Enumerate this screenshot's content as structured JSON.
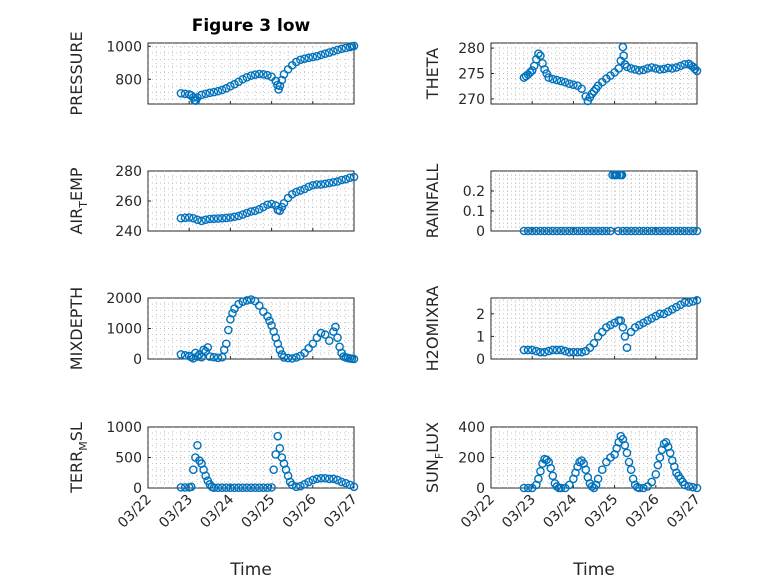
{
  "figure": {
    "title": "Figure 3 low",
    "marker_color": "#0072BD",
    "x_ticks": [
      "03/22",
      "03/23",
      "03/24",
      "03/25",
      "03/26",
      "03/27"
    ],
    "x_label": "Time"
  },
  "chart_data": [
    {
      "type": "scatter",
      "ylabel": "PRESSURE",
      "title": "Figure 3 low",
      "xlim": [
        0,
        5
      ],
      "ylim": [
        650,
        1020
      ],
      "yticks": [
        800,
        1000
      ],
      "grid": true,
      "series": [
        {
          "x": [
            0.8,
            0.9,
            1.0,
            1.05,
            1.1,
            1.13,
            1.16,
            1.2,
            1.3,
            1.4,
            1.5,
            1.6,
            1.7,
            1.8,
            1.9,
            2.0,
            2.1,
            2.2,
            2.3,
            2.4,
            2.5,
            2.6,
            2.7,
            2.8,
            2.9,
            3.0,
            3.1,
            3.14,
            3.17,
            3.2,
            3.25,
            3.3,
            3.4,
            3.5,
            3.6,
            3.7,
            3.8,
            3.9,
            4.0,
            4.1,
            4.2,
            4.3,
            4.4,
            4.5,
            4.6,
            4.7,
            4.8,
            4.9,
            4.95,
            5.0
          ],
          "y": [
            715,
            712,
            708,
            702,
            690,
            672,
            670,
            690,
            705,
            712,
            718,
            722,
            728,
            735,
            745,
            758,
            770,
            785,
            800,
            812,
            822,
            828,
            832,
            830,
            825,
            815,
            790,
            765,
            738,
            760,
            795,
            830,
            860,
            885,
            905,
            918,
            925,
            930,
            935,
            940,
            948,
            955,
            962,
            970,
            978,
            985,
            990,
            995,
            1000,
            1002
          ]
        }
      ]
    },
    {
      "type": "scatter",
      "ylabel": "THETA",
      "xlim": [
        0,
        5
      ],
      "ylim": [
        269,
        281
      ],
      "yticks": [
        270,
        275,
        280
      ],
      "grid": true,
      "series": [
        {
          "x": [
            0.8,
            0.85,
            0.9,
            0.95,
            1.0,
            1.05,
            1.1,
            1.15,
            1.2,
            1.25,
            1.3,
            1.35,
            1.4,
            1.5,
            1.6,
            1.7,
            1.8,
            1.9,
            2.0,
            2.1,
            2.2,
            2.3,
            2.35,
            2.4,
            2.45,
            2.5,
            2.55,
            2.6,
            2.7,
            2.8,
            2.9,
            3.0,
            3.1,
            3.15,
            3.2,
            3.22,
            3.25,
            3.3,
            3.4,
            3.5,
            3.6,
            3.7,
            3.8,
            3.9,
            4.0,
            4.1,
            4.2,
            4.3,
            4.4,
            4.5,
            4.6,
            4.7,
            4.8,
            4.85,
            4.9,
            4.95,
            5.0
          ],
          "y": [
            274.2,
            274.5,
            274.8,
            275.2,
            275.6,
            276.5,
            277.8,
            278.9,
            278.5,
            277.0,
            275.8,
            275.0,
            274.2,
            273.9,
            273.7,
            273.5,
            273.3,
            273.0,
            272.8,
            272.6,
            272.0,
            270.5,
            269.6,
            270.3,
            271.0,
            271.5,
            272.0,
            272.6,
            273.3,
            274.0,
            274.6,
            275.2,
            276.0,
            277.5,
            280.2,
            278.5,
            276.8,
            276.3,
            276.0,
            275.8,
            275.6,
            275.7,
            276.0,
            276.2,
            276.0,
            275.8,
            275.9,
            276.1,
            276.0,
            276.2,
            276.5,
            276.8,
            276.9,
            276.6,
            276.3,
            275.9,
            275.5
          ]
        }
      ]
    },
    {
      "type": "scatter",
      "ylabel": "AIR_TEMP",
      "xlim": [
        0,
        5
      ],
      "ylim": [
        240,
        280
      ],
      "yticks": [
        240,
        260,
        280
      ],
      "grid": true,
      "series": [
        {
          "x": [
            0.8,
            0.9,
            1.0,
            1.1,
            1.2,
            1.3,
            1.4,
            1.5,
            1.6,
            1.7,
            1.8,
            1.9,
            2.0,
            2.1,
            2.2,
            2.3,
            2.4,
            2.5,
            2.6,
            2.7,
            2.8,
            2.9,
            3.0,
            3.1,
            3.15,
            3.2,
            3.25,
            3.3,
            3.4,
            3.5,
            3.6,
            3.7,
            3.8,
            3.9,
            4.0,
            4.1,
            4.2,
            4.3,
            4.4,
            4.5,
            4.6,
            4.7,
            4.8,
            4.9,
            5.0
          ],
          "y": [
            248.5,
            248.8,
            249.0,
            248.5,
            247.5,
            246.8,
            247.5,
            248.0,
            248.2,
            248.3,
            248.5,
            248.7,
            249.0,
            249.5,
            250.0,
            251.0,
            252.0,
            253.0,
            253.5,
            254.5,
            256.0,
            257.5,
            258.0,
            257.0,
            254.0,
            253.5,
            256.0,
            258.5,
            262.0,
            264.5,
            266.0,
            267.0,
            268.0,
            269.5,
            270.5,
            271.0,
            271.0,
            271.5,
            272.0,
            272.5,
            273.0,
            274.0,
            274.5,
            275.5,
            276.0
          ]
        }
      ]
    },
    {
      "type": "scatter",
      "ylabel": "RAINFALL",
      "xlim": [
        0,
        5
      ],
      "ylim": [
        0,
        0.3
      ],
      "yticks": [
        0,
        0.1,
        0.2
      ],
      "grid": true,
      "series": [
        {
          "x": [
            0.8,
            0.9,
            1.0,
            1.1,
            1.2,
            1.3,
            1.4,
            1.5,
            1.6,
            1.7,
            1.8,
            1.9,
            2.0,
            2.1,
            2.2,
            2.3,
            2.4,
            2.5,
            2.6,
            2.7,
            2.8,
            2.9,
            2.95,
            3.0,
            3.03,
            3.06,
            3.09,
            3.12,
            3.15,
            3.18,
            3.2,
            3.3,
            3.4,
            3.5,
            3.6,
            3.7,
            3.8,
            3.9,
            4.0,
            4.1,
            4.2,
            4.3,
            4.4,
            4.5,
            4.6,
            4.7,
            4.8,
            4.9,
            5.0
          ],
          "y": [
            0,
            0,
            0,
            0,
            0,
            0,
            0,
            0,
            0,
            0,
            0,
            0,
            0,
            0,
            0,
            0,
            0,
            0,
            0,
            0,
            0,
            0,
            0.28,
            0.28,
            0.28,
            0.28,
            0,
            0.28,
            0.28,
            0.28,
            0,
            0,
            0,
            0,
            0,
            0,
            0,
            0,
            0,
            0,
            0,
            0,
            0,
            0,
            0,
            0,
            0,
            0,
            0
          ]
        }
      ]
    },
    {
      "type": "scatter",
      "ylabel": "MIXDEPTH",
      "xlim": [
        0,
        5
      ],
      "ylim": [
        0,
        2000
      ],
      "yticks": [
        0,
        1000,
        2000
      ],
      "grid": true,
      "series": [
        {
          "x": [
            0.8,
            0.9,
            1.0,
            1.05,
            1.1,
            1.15,
            1.2,
            1.25,
            1.3,
            1.35,
            1.4,
            1.45,
            1.5,
            1.6,
            1.7,
            1.8,
            1.85,
            1.9,
            1.95,
            2.0,
            2.05,
            2.1,
            2.2,
            2.3,
            2.4,
            2.5,
            2.6,
            2.7,
            2.8,
            2.9,
            2.95,
            3.0,
            3.05,
            3.1,
            3.15,
            3.2,
            3.25,
            3.3,
            3.4,
            3.5,
            3.6,
            3.7,
            3.8,
            3.9,
            4.0,
            4.1,
            4.2,
            4.3,
            4.4,
            4.5,
            4.55,
            4.6,
            4.65,
            4.7,
            4.75,
            4.8,
            4.85,
            4.9,
            4.95,
            5.0
          ],
          "y": [
            150,
            120,
            100,
            60,
            20,
            200,
            80,
            150,
            60,
            300,
            250,
            380,
            80,
            60,
            40,
            60,
            300,
            500,
            950,
            1300,
            1500,
            1650,
            1800,
            1880,
            1920,
            1950,
            1900,
            1750,
            1550,
            1400,
            1250,
            1100,
            900,
            700,
            500,
            300,
            150,
            50,
            30,
            20,
            50,
            100,
            200,
            350,
            500,
            700,
            850,
            800,
            600,
            900,
            1050,
            700,
            400,
            200,
            80,
            50,
            30,
            20,
            10,
            0
          ]
        }
      ]
    },
    {
      "type": "scatter",
      "ylabel": "H2OMIXRA",
      "xlim": [
        0,
        5
      ],
      "ylim": [
        0,
        2.7
      ],
      "yticks": [
        0,
        1,
        2
      ],
      "grid": true,
      "series": [
        {
          "x": [
            0.8,
            0.9,
            1.0,
            1.1,
            1.2,
            1.3,
            1.4,
            1.5,
            1.6,
            1.7,
            1.8,
            1.9,
            2.0,
            2.1,
            2.2,
            2.3,
            2.4,
            2.5,
            2.6,
            2.7,
            2.8,
            2.9,
            3.0,
            3.1,
            3.15,
            3.2,
            3.25,
            3.3,
            3.4,
            3.5,
            3.6,
            3.7,
            3.8,
            3.9,
            4.0,
            4.1,
            4.2,
            4.3,
            4.4,
            4.5,
            4.6,
            4.7,
            4.8,
            4.9,
            5.0
          ],
          "y": [
            0.4,
            0.4,
            0.4,
            0.35,
            0.3,
            0.3,
            0.35,
            0.4,
            0.4,
            0.4,
            0.35,
            0.3,
            0.3,
            0.3,
            0.3,
            0.35,
            0.5,
            0.7,
            1.0,
            1.2,
            1.4,
            1.5,
            1.6,
            1.7,
            1.7,
            1.4,
            1.0,
            0.5,
            1.2,
            1.4,
            1.5,
            1.6,
            1.7,
            1.8,
            1.9,
            2.0,
            2.0,
            2.1,
            2.2,
            2.3,
            2.4,
            2.5,
            2.5,
            2.55,
            2.6
          ]
        }
      ]
    },
    {
      "type": "scatter",
      "ylabel": "TERR_MSL",
      "xlim": [
        0,
        5
      ],
      "ylim": [
        0,
        1000
      ],
      "yticks": [
        0,
        500,
        1000
      ],
      "grid": true,
      "series": [
        {
          "x": [
            0.8,
            0.9,
            1.0,
            1.05,
            1.1,
            1.15,
            1.2,
            1.25,
            1.3,
            1.35,
            1.4,
            1.45,
            1.5,
            1.55,
            1.6,
            1.7,
            1.8,
            1.9,
            2.0,
            2.1,
            2.2,
            2.3,
            2.4,
            2.5,
            2.6,
            2.7,
            2.8,
            2.9,
            3.0,
            3.05,
            3.1,
            3.15,
            3.2,
            3.25,
            3.3,
            3.35,
            3.4,
            3.45,
            3.5,
            3.6,
            3.7,
            3.8,
            3.9,
            4.0,
            4.1,
            4.2,
            4.3,
            4.4,
            4.5,
            4.6,
            4.7,
            4.8,
            4.9,
            5.0
          ],
          "y": [
            10,
            10,
            10,
            20,
            300,
            500,
            700,
            450,
            400,
            300,
            200,
            120,
            60,
            20,
            5,
            5,
            5,
            5,
            5,
            5,
            5,
            5,
            5,
            5,
            5,
            5,
            5,
            5,
            10,
            300,
            550,
            850,
            650,
            500,
            400,
            300,
            200,
            100,
            50,
            20,
            30,
            60,
            100,
            130,
            150,
            160,
            160,
            150,
            150,
            130,
            100,
            80,
            50,
            20
          ]
        }
      ]
    },
    {
      "type": "scatter",
      "ylabel": "SUN_FLUX",
      "xlim": [
        0,
        5
      ],
      "ylim": [
        0,
        400
      ],
      "yticks": [
        0,
        200,
        400
      ],
      "grid": true,
      "series": [
        {
          "x": [
            0.8,
            0.9,
            1.0,
            1.1,
            1.15,
            1.2,
            1.25,
            1.3,
            1.35,
            1.4,
            1.45,
            1.5,
            1.55,
            1.6,
            1.65,
            1.7,
            1.8,
            1.9,
            2.0,
            2.05,
            2.1,
            2.15,
            2.2,
            2.25,
            2.3,
            2.35,
            2.4,
            2.45,
            2.5,
            2.55,
            2.6,
            2.7,
            2.8,
            2.9,
            3.0,
            3.05,
            3.1,
            3.15,
            3.2,
            3.25,
            3.3,
            3.35,
            3.4,
            3.45,
            3.5,
            3.55,
            3.6,
            3.7,
            3.8,
            3.9,
            4.0,
            4.05,
            4.1,
            4.15,
            4.2,
            4.25,
            4.3,
            4.35,
            4.4,
            4.45,
            4.5,
            4.55,
            4.6,
            4.65,
            4.7,
            4.8,
            4.9,
            5.0
          ],
          "y": [
            0,
            0,
            0,
            20,
            60,
            110,
            160,
            190,
            185,
            170,
            130,
            80,
            30,
            10,
            0,
            0,
            0,
            20,
            60,
            100,
            140,
            170,
            180,
            160,
            120,
            70,
            30,
            10,
            0,
            20,
            60,
            120,
            170,
            200,
            220,
            260,
            300,
            340,
            320,
            280,
            230,
            170,
            120,
            60,
            20,
            5,
            0,
            0,
            10,
            40,
            90,
            150,
            200,
            250,
            290,
            300,
            270,
            230,
            180,
            140,
            100,
            80,
            60,
            40,
            20,
            10,
            5,
            0
          ]
        }
      ]
    }
  ]
}
